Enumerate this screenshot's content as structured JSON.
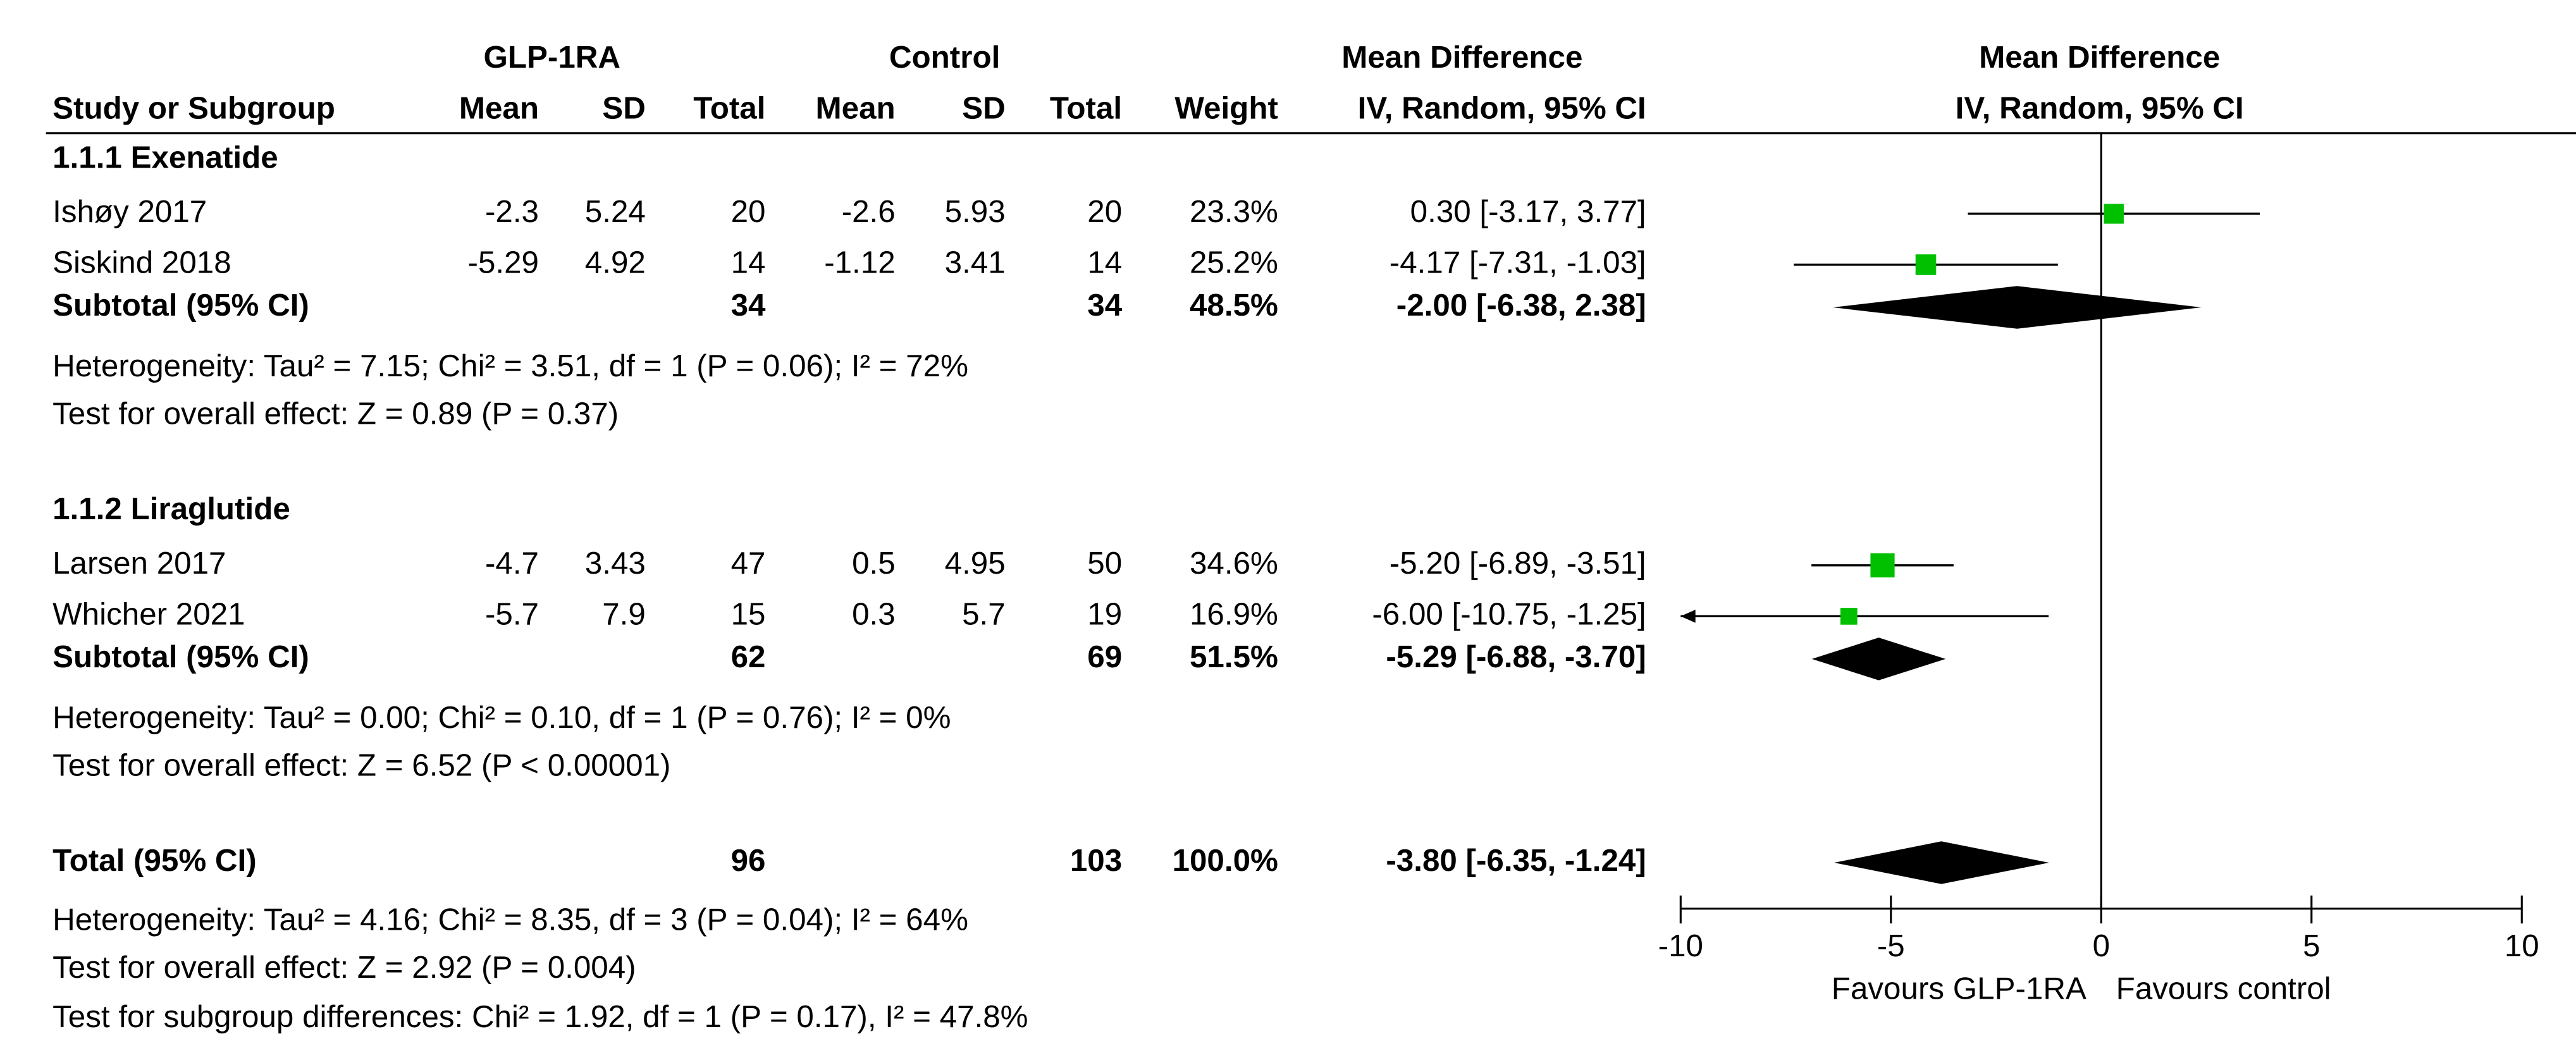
{
  "chart_data": {
    "type": "forest",
    "group_headers": {
      "experimental": "GLP-1RA",
      "control": "Control",
      "table_effect": "Mean Difference",
      "plot_effect": "Mean Difference"
    },
    "column_headers": {
      "study": "Study or Subgroup",
      "mean1": "Mean",
      "sd1": "SD",
      "total1": "Total",
      "mean2": "Mean",
      "sd2": "SD",
      "total2": "Total",
      "weight": "Weight",
      "ci": "IV, Random, 95% CI",
      "plot_ci": "IV, Random, 95% CI"
    },
    "subgroups": [
      {
        "title": "1.1.1 Exenatide",
        "studies": [
          {
            "name": "Ishøy 2017",
            "mean1": -2.3,
            "sd1": 5.24,
            "total1": 20,
            "mean2": -2.6,
            "sd2": 5.93,
            "total2": 20,
            "weight": 23.3,
            "weight_label": "23.3%",
            "md": 0.3,
            "lo": -3.17,
            "hi": 3.77,
            "ci_label": "0.30 [-3.17, 3.77]"
          },
          {
            "name": "Siskind 2018",
            "mean1": -5.29,
            "sd1": 4.92,
            "total1": 14,
            "mean2": -1.12,
            "sd2": 3.41,
            "total2": 14,
            "weight": 25.2,
            "weight_label": "25.2%",
            "md": -4.17,
            "lo": -7.31,
            "hi": -1.03,
            "ci_label": "-4.17 [-7.31, -1.03]"
          }
        ],
        "subtotal": {
          "name": "Subtotal (95% CI)",
          "total1": 34,
          "total2": 34,
          "weight": 48.5,
          "weight_label": "48.5%",
          "md": -2,
          "lo": -6.38,
          "hi": 2.38,
          "ci_label": "-2.00 [-6.38, 2.38]"
        },
        "heterogeneity": "Heterogeneity: Tau² = 7.15; Chi² = 3.51, df = 1 (P = 0.06); I² = 72%",
        "overall_effect": "Test for overall effect: Z = 0.89 (P = 0.37)"
      },
      {
        "title": "1.1.2 Liraglutide",
        "studies": [
          {
            "name": "Larsen 2017",
            "mean1": -4.7,
            "sd1": 3.43,
            "total1": 47,
            "mean2": 0.5,
            "sd2": 4.95,
            "total2": 50,
            "weight": 34.6,
            "weight_label": "34.6%",
            "md": -5.2,
            "lo": -6.89,
            "hi": -3.51,
            "ci_label": "-5.20 [-6.89, -3.51]"
          },
          {
            "name": "Whicher 2021",
            "mean1": -5.7,
            "sd1": 7.9,
            "total1": 15,
            "mean2": 0.3,
            "sd2": 5.7,
            "total2": 19,
            "weight": 16.9,
            "weight_label": "16.9%",
            "md": -6,
            "lo": -10.75,
            "hi": -1.25,
            "ci_label": "-6.00 [-10.75, -1.25]"
          }
        ],
        "subtotal": {
          "name": "Subtotal (95% CI)",
          "total1": 62,
          "total2": 69,
          "weight": 51.5,
          "weight_label": "51.5%",
          "md": -5.29,
          "lo": -6.88,
          "hi": -3.7,
          "ci_label": "-5.29 [-6.88, -3.70]"
        },
        "heterogeneity": "Heterogeneity: Tau² = 0.00; Chi² = 0.10, df = 1 (P = 0.76); I² = 0%",
        "overall_effect": "Test for overall effect: Z = 6.52 (P < 0.00001)"
      }
    ],
    "total": {
      "name": "Total (95% CI)",
      "total1": 96,
      "total2": 103,
      "weight": 100,
      "weight_label": "100.0%",
      "md": -3.8,
      "lo": -6.35,
      "hi": -1.24,
      "ci_label": "-3.80 [-6.35, -1.24]"
    },
    "heterogeneity": "Heterogeneity: Tau² = 4.16; Chi² = 8.35, df = 3 (P = 0.04); I² = 64%",
    "overall_effect": "Test for overall effect: Z = 2.92 (P = 0.004)",
    "subgroup_differences": "Test for subgroup differences: Chi² = 1.92, df = 1 (P = 0.17), I² = 47.8%",
    "xlim": [
      -10,
      10
    ],
    "xticks": [
      -10,
      -5,
      0,
      5,
      10
    ],
    "favours_left": "Favours GLP-1RA",
    "favours_right": "Favours control",
    "marker_color": "#00c000",
    "diamond_color": "#000000"
  }
}
